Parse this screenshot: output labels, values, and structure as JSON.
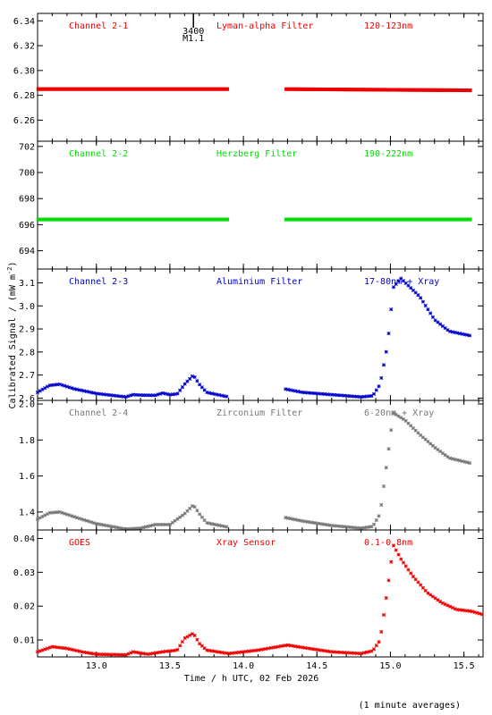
{
  "x_axis": {
    "label": "Time / h UTC, 02 Feb 2026",
    "ticks": [
      "13.0",
      "13.5",
      "14.0",
      "14.5",
      "15.0",
      "15.5"
    ],
    "range": [
      12.6,
      15.63
    ]
  },
  "y_axis_label": "Calibrated Signal / (mW m",
  "y_axis_label_sup": "-2",
  "y_axis_label_close": ")",
  "footer_note": "(1 minute averages)",
  "marker": {
    "number": "3400",
    "label": "M1.1",
    "time": 13.66
  },
  "colors": {
    "red": "#ee0000",
    "green": "#00dd00",
    "blue": "#0000cc",
    "gray": "#777777",
    "axis": "#000000"
  },
  "chart_data": [
    {
      "type": "scatter",
      "channel": "Channel 2-1",
      "filter": "Lyman-alpha Filter",
      "band": "120-123nm",
      "color": "#ee0000",
      "ylim": [
        6.243,
        6.346
      ],
      "yticks": [
        "6.26",
        "6.28",
        "6.30",
        "6.32",
        "6.34"
      ],
      "gap": [
        13.9,
        14.28
      ],
      "points": [
        [
          12.6,
          6.285
        ],
        [
          13.9,
          6.285
        ],
        [
          14.28,
          6.285
        ],
        [
          15.55,
          6.284
        ]
      ]
    },
    {
      "type": "scatter",
      "channel": "Channel 2-2",
      "filter": "Herzberg Filter",
      "band": "190-222nm",
      "color": "#00dd00",
      "ylim": [
        692.6,
        702.4
      ],
      "yticks": [
        "694",
        "696",
        "698",
        "700",
        "702"
      ],
      "gap": [
        13.9,
        14.28
      ],
      "points": [
        [
          12.6,
          696.4
        ],
        [
          13.9,
          696.4
        ],
        [
          14.28,
          696.4
        ],
        [
          15.55,
          696.4
        ]
      ]
    },
    {
      "type": "scatter",
      "channel": "Channel 2-3",
      "filter": "Aluminium Filter",
      "band": "17-80nm + Xray",
      "color": "#0000cc",
      "ylim": [
        2.59,
        3.16
      ],
      "yticks": [
        "2.6",
        "2.7",
        "2.8",
        "2.9",
        "3.0",
        "3.1"
      ],
      "gap": [
        13.9,
        14.28
      ],
      "points": [
        [
          12.6,
          2.625
        ],
        [
          12.68,
          2.655
        ],
        [
          12.75,
          2.66
        ],
        [
          12.85,
          2.64
        ],
        [
          13.0,
          2.62
        ],
        [
          13.2,
          2.605
        ],
        [
          13.25,
          2.615
        ],
        [
          13.3,
          2.613
        ],
        [
          13.4,
          2.612
        ],
        [
          13.45,
          2.622
        ],
        [
          13.5,
          2.615
        ],
        [
          13.55,
          2.618
        ],
        [
          13.6,
          2.66
        ],
        [
          13.66,
          2.7
        ],
        [
          13.7,
          2.66
        ],
        [
          13.75,
          2.625
        ],
        [
          13.8,
          2.618
        ],
        [
          13.9,
          2.605
        ],
        [
          14.28,
          2.64
        ],
        [
          14.4,
          2.625
        ],
        [
          14.6,
          2.615
        ],
        [
          14.8,
          2.605
        ],
        [
          14.88,
          2.61
        ],
        [
          14.93,
          2.66
        ],
        [
          14.98,
          2.83
        ],
        [
          15.02,
          3.08
        ],
        [
          15.07,
          3.12
        ],
        [
          15.2,
          3.04
        ],
        [
          15.3,
          2.94
        ],
        [
          15.4,
          2.89
        ],
        [
          15.55,
          2.87
        ]
      ]
    },
    {
      "type": "scatter",
      "channel": "Channel 2-4",
      "filter": "Zirconium Filter",
      "band": "6-20nm + Xray",
      "color": "#777777",
      "ylim": [
        1.3,
        2.02
      ],
      "yticks": [
        "1.4",
        "1.6",
        "1.8",
        "2.0"
      ],
      "gap": [
        13.9,
        14.28
      ],
      "points": [
        [
          12.6,
          1.36
        ],
        [
          12.68,
          1.395
        ],
        [
          12.75,
          1.4
        ],
        [
          12.9,
          1.36
        ],
        [
          13.0,
          1.335
        ],
        [
          13.2,
          1.305
        ],
        [
          13.3,
          1.31
        ],
        [
          13.4,
          1.33
        ],
        [
          13.5,
          1.33
        ],
        [
          13.6,
          1.39
        ],
        [
          13.66,
          1.44
        ],
        [
          13.7,
          1.39
        ],
        [
          13.75,
          1.34
        ],
        [
          13.9,
          1.315
        ],
        [
          14.28,
          1.37
        ],
        [
          14.4,
          1.35
        ],
        [
          14.6,
          1.325
        ],
        [
          14.8,
          1.31
        ],
        [
          14.88,
          1.32
        ],
        [
          14.93,
          1.39
        ],
        [
          14.98,
          1.7
        ],
        [
          15.02,
          1.95
        ],
        [
          15.1,
          1.91
        ],
        [
          15.2,
          1.83
        ],
        [
          15.3,
          1.76
        ],
        [
          15.4,
          1.7
        ],
        [
          15.55,
          1.67
        ]
      ]
    },
    {
      "type": "scatter",
      "channel": "GOES",
      "filter": "Xray Sensor",
      "band": "0.1-0.8nm",
      "color": "#ee0000",
      "ylim": [
        0.005,
        0.0425
      ],
      "yticks": [
        "0.01",
        "0.02",
        "0.03",
        "0.04"
      ],
      "gap": null,
      "points": [
        [
          12.6,
          0.0065
        ],
        [
          12.7,
          0.008
        ],
        [
          12.8,
          0.0075
        ],
        [
          12.9,
          0.0065
        ],
        [
          13.0,
          0.0058
        ],
        [
          13.2,
          0.0056
        ],
        [
          13.25,
          0.0065
        ],
        [
          13.35,
          0.0058
        ],
        [
          13.45,
          0.0065
        ],
        [
          13.55,
          0.007
        ],
        [
          13.6,
          0.0105
        ],
        [
          13.66,
          0.012
        ],
        [
          13.7,
          0.009
        ],
        [
          13.75,
          0.007
        ],
        [
          13.9,
          0.006
        ],
        [
          14.1,
          0.007
        ],
        [
          14.3,
          0.0085
        ],
        [
          14.4,
          0.0078
        ],
        [
          14.6,
          0.0065
        ],
        [
          14.8,
          0.006
        ],
        [
          14.88,
          0.0068
        ],
        [
          14.93,
          0.01
        ],
        [
          14.98,
          0.025
        ],
        [
          15.02,
          0.038
        ],
        [
          15.07,
          0.034
        ],
        [
          15.15,
          0.029
        ],
        [
          15.25,
          0.024
        ],
        [
          15.35,
          0.021
        ],
        [
          15.45,
          0.019
        ],
        [
          15.55,
          0.0185
        ],
        [
          15.63,
          0.0175
        ]
      ]
    }
  ]
}
